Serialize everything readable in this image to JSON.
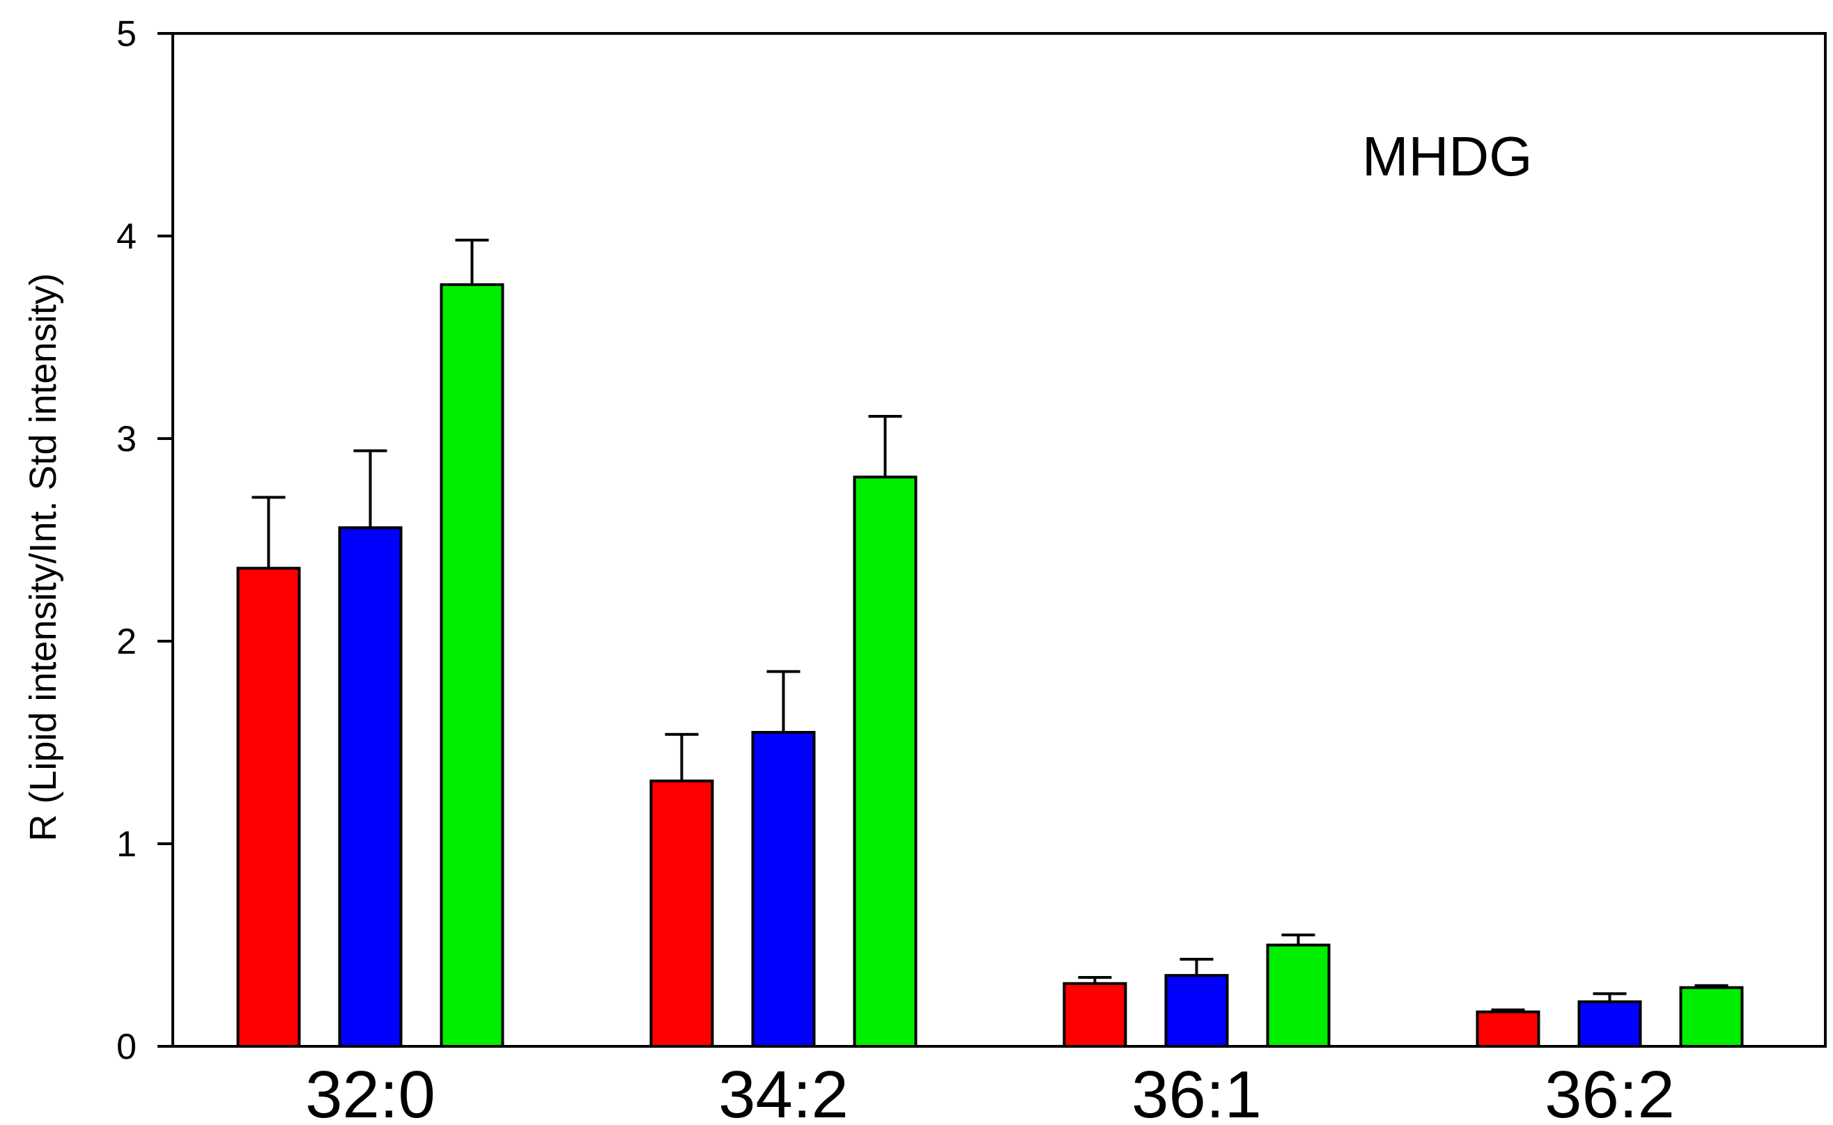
{
  "chart_data": {
    "type": "bar",
    "annotation": "MHDG",
    "ylabel": "R (Lipid intensity/Int. Std intensity)",
    "xlabel": "",
    "ylim": [
      0,
      5
    ],
    "yticks": [
      "0",
      "1",
      "2",
      "3",
      "4",
      "5"
    ],
    "categories": [
      "32:0",
      "34:2",
      "36:1",
      "36:2"
    ],
    "grid": false,
    "legend": "none",
    "series": [
      {
        "color": "#ff0000",
        "values": [
          2.36,
          1.31,
          0.31,
          0.17
        ],
        "errors": [
          0.35,
          0.23,
          0.03,
          0.01
        ]
      },
      {
        "color": "#0000ff",
        "values": [
          2.56,
          1.55,
          0.35,
          0.22
        ],
        "errors": [
          0.38,
          0.3,
          0.08,
          0.04
        ]
      },
      {
        "color": "#00ee00",
        "values": [
          3.76,
          2.81,
          0.5,
          0.29
        ],
        "errors": [
          0.22,
          0.3,
          0.05,
          0.01
        ]
      }
    ]
  }
}
